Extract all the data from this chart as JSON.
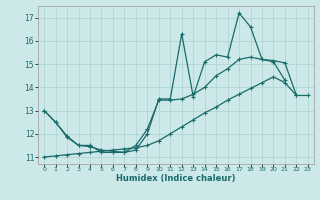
{
  "xlabel": "Humidex (Indice chaleur)",
  "background_color": "#cce8e8",
  "grid_color": "#aad0d0",
  "line_color": "#1a6b6b",
  "xlim": [
    -0.5,
    23.5
  ],
  "ylim": [
    10.7,
    17.5
  ],
  "yticks": [
    11,
    12,
    13,
    14,
    15,
    16,
    17
  ],
  "xticks": [
    0,
    1,
    2,
    3,
    4,
    5,
    6,
    7,
    8,
    9,
    10,
    11,
    12,
    13,
    14,
    15,
    16,
    17,
    18,
    19,
    20,
    21,
    22,
    23
  ],
  "line1_x": [
    0,
    1,
    2,
    3,
    4,
    5,
    6,
    7,
    8,
    9,
    10,
    11,
    12,
    13,
    14,
    15,
    16,
    17,
    18,
    19,
    20,
    21
  ],
  "line1_y": [
    13.0,
    12.5,
    11.9,
    11.5,
    11.5,
    11.2,
    11.2,
    11.2,
    11.3,
    12.0,
    13.5,
    13.5,
    16.3,
    13.6,
    15.1,
    15.4,
    15.3,
    17.2,
    16.6,
    15.2,
    15.1,
    14.3
  ],
  "line2_x": [
    0,
    1,
    2,
    3,
    4,
    5,
    6,
    7,
    8,
    9,
    10,
    11,
    12,
    13,
    14,
    15,
    16,
    17,
    18,
    19,
    20,
    21,
    22
  ],
  "line2_y": [
    13.0,
    12.5,
    11.85,
    11.5,
    11.45,
    11.3,
    11.25,
    11.2,
    11.5,
    12.2,
    13.45,
    13.45,
    13.5,
    13.7,
    14.0,
    14.5,
    14.8,
    15.2,
    15.3,
    15.2,
    15.15,
    15.05,
    13.65
  ],
  "line3_x": [
    0,
    1,
    2,
    3,
    4,
    5,
    6,
    7,
    8,
    9,
    10,
    11,
    12,
    13,
    14,
    15,
    16,
    17,
    18,
    19,
    20,
    21,
    22,
    23
  ],
  "line3_y": [
    11.0,
    11.05,
    11.1,
    11.15,
    11.2,
    11.25,
    11.3,
    11.35,
    11.4,
    11.5,
    11.7,
    12.0,
    12.3,
    12.6,
    12.9,
    13.15,
    13.45,
    13.7,
    13.95,
    14.2,
    14.45,
    14.2,
    13.65,
    13.65
  ]
}
